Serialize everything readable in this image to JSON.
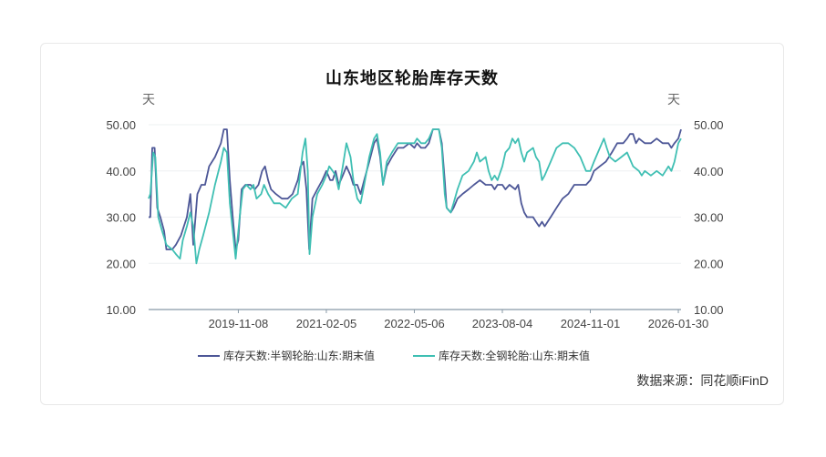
{
  "title": "山东地区轮胎库存天数",
  "source": "数据来源：同花顺iFinD",
  "colors": {
    "series1": "#4d5797",
    "series2": "#3fbfb3",
    "axis": "#8899a6",
    "grid": "#eef0f2"
  },
  "chart_data": {
    "type": "line",
    "title": "山东地区轮胎库存天数",
    "y_unit_left": "天",
    "y_unit_right": "天",
    "ylim": [
      10,
      50
    ],
    "y_ticks": [
      "50.00",
      "40.00",
      "30.00",
      "20.00",
      "10.00"
    ],
    "x_ticks": [
      "2019-11-08",
      "2021-02-05",
      "2022-05-06",
      "2023-08-04",
      "2024-11-01",
      "2026-01-30"
    ],
    "x_range": [
      "2018-08-01",
      "2026-02-13"
    ],
    "grid": true,
    "legend": "bottom",
    "series": [
      {
        "name": "库存天数:半钢轮胎:山东:期末值",
        "points": [
          [
            "2018-08-01",
            30
          ],
          [
            "2018-08-10",
            30
          ],
          [
            "2018-08-20",
            45
          ],
          [
            "2018-09-01",
            45
          ],
          [
            "2018-09-15",
            32
          ],
          [
            "2018-10-01",
            30
          ],
          [
            "2018-10-20",
            27
          ],
          [
            "2018-11-01",
            23
          ],
          [
            "2018-12-01",
            23
          ],
          [
            "2018-12-20",
            24
          ],
          [
            "2019-01-15",
            26
          ],
          [
            "2019-02-15",
            30
          ],
          [
            "2019-03-05",
            35
          ],
          [
            "2019-03-20",
            24
          ],
          [
            "2019-04-10",
            35
          ],
          [
            "2019-05-01",
            37
          ],
          [
            "2019-05-20",
            37
          ],
          [
            "2019-06-10",
            41
          ],
          [
            "2019-07-10",
            43
          ],
          [
            "2019-08-10",
            46
          ],
          [
            "2019-08-25",
            49
          ],
          [
            "2019-09-10",
            49
          ],
          [
            "2019-09-25",
            38
          ],
          [
            "2019-10-10",
            30
          ],
          [
            "2019-10-25",
            23
          ],
          [
            "2019-11-08",
            25
          ],
          [
            "2019-11-25",
            36
          ],
          [
            "2019-12-15",
            37
          ],
          [
            "2020-01-10",
            37
          ],
          [
            "2020-02-01",
            36
          ],
          [
            "2020-02-20",
            37
          ],
          [
            "2020-03-10",
            40
          ],
          [
            "2020-03-25",
            41
          ],
          [
            "2020-04-10",
            38
          ],
          [
            "2020-04-25",
            36
          ],
          [
            "2020-05-20",
            35
          ],
          [
            "2020-06-20",
            34
          ],
          [
            "2020-07-20",
            34
          ],
          [
            "2020-08-15",
            35
          ],
          [
            "2020-09-10",
            38
          ],
          [
            "2020-09-25",
            41
          ],
          [
            "2020-10-10",
            42
          ],
          [
            "2020-10-25",
            36
          ],
          [
            "2020-11-08",
            23
          ],
          [
            "2020-11-25",
            34
          ],
          [
            "2020-12-20",
            36
          ],
          [
            "2021-01-15",
            38
          ],
          [
            "2021-02-05",
            40
          ],
          [
            "2021-02-25",
            38
          ],
          [
            "2021-03-10",
            38
          ],
          [
            "2021-03-25",
            40
          ],
          [
            "2021-04-10",
            37
          ],
          [
            "2021-05-01",
            39
          ],
          [
            "2021-05-20",
            41
          ],
          [
            "2021-06-10",
            39
          ],
          [
            "2021-06-25",
            37
          ],
          [
            "2021-07-15",
            37
          ],
          [
            "2021-08-01",
            35
          ],
          [
            "2021-08-20",
            38
          ],
          [
            "2021-09-15",
            42
          ],
          [
            "2021-10-10",
            46
          ],
          [
            "2021-10-25",
            47
          ],
          [
            "2021-11-10",
            43
          ],
          [
            "2021-11-25",
            37
          ],
          [
            "2021-12-15",
            41
          ],
          [
            "2022-01-10",
            43
          ],
          [
            "2022-02-10",
            45
          ],
          [
            "2022-03-10",
            45
          ],
          [
            "2022-04-10",
            46
          ],
          [
            "2022-05-06",
            45
          ],
          [
            "2022-05-20",
            46
          ],
          [
            "2022-06-10",
            45
          ],
          [
            "2022-07-01",
            45
          ],
          [
            "2022-07-20",
            46
          ],
          [
            "2022-08-10",
            49
          ],
          [
            "2022-09-10",
            49
          ],
          [
            "2022-09-25",
            46
          ],
          [
            "2022-10-10",
            38
          ],
          [
            "2022-10-20",
            32
          ],
          [
            "2022-11-10",
            31
          ],
          [
            "2022-11-25",
            32
          ],
          [
            "2022-12-15",
            34
          ],
          [
            "2023-01-10",
            35
          ],
          [
            "2023-02-10",
            36
          ],
          [
            "2023-03-10",
            37
          ],
          [
            "2023-04-10",
            38
          ],
          [
            "2023-05-10",
            37
          ],
          [
            "2023-06-10",
            37
          ],
          [
            "2023-06-25",
            36
          ],
          [
            "2023-07-10",
            37
          ],
          [
            "2023-08-04",
            37
          ],
          [
            "2023-08-20",
            36
          ],
          [
            "2023-09-10",
            37
          ],
          [
            "2023-10-10",
            36
          ],
          [
            "2023-10-25",
            37
          ],
          [
            "2023-11-10",
            33
          ],
          [
            "2023-11-25",
            31
          ],
          [
            "2023-12-10",
            30
          ],
          [
            "2024-01-10",
            30
          ],
          [
            "2024-01-25",
            29
          ],
          [
            "2024-02-10",
            28
          ],
          [
            "2024-02-25",
            29
          ],
          [
            "2024-03-10",
            28
          ],
          [
            "2024-04-10",
            30
          ],
          [
            "2024-05-10",
            32
          ],
          [
            "2024-06-10",
            34
          ],
          [
            "2024-07-10",
            35
          ],
          [
            "2024-08-10",
            37
          ],
          [
            "2024-09-10",
            37
          ],
          [
            "2024-10-10",
            37
          ],
          [
            "2024-11-01",
            38
          ],
          [
            "2024-11-20",
            40
          ],
          [
            "2024-12-20",
            41
          ],
          [
            "2025-01-20",
            42
          ],
          [
            "2025-02-20",
            44
          ],
          [
            "2025-03-20",
            46
          ],
          [
            "2025-04-20",
            46
          ],
          [
            "2025-05-10",
            47
          ],
          [
            "2025-05-25",
            48
          ],
          [
            "2025-06-10",
            48
          ],
          [
            "2025-06-25",
            46
          ],
          [
            "2025-07-10",
            47
          ],
          [
            "2025-08-10",
            46
          ],
          [
            "2025-09-10",
            46
          ],
          [
            "2025-10-10",
            47
          ],
          [
            "2025-11-10",
            46
          ],
          [
            "2025-12-10",
            46
          ],
          [
            "2025-12-25",
            45
          ],
          [
            "2026-01-10",
            46
          ],
          [
            "2026-01-30",
            47
          ],
          [
            "2026-02-13",
            49
          ]
        ]
      },
      {
        "name": "库存天数:全钢轮胎:山东:期末值",
        "points": [
          [
            "2018-08-01",
            34
          ],
          [
            "2018-08-10",
            35
          ],
          [
            "2018-08-25",
            44
          ],
          [
            "2018-09-05",
            43
          ],
          [
            "2018-09-20",
            30
          ],
          [
            "2018-10-10",
            27
          ],
          [
            "2018-11-01",
            24
          ],
          [
            "2018-12-01",
            23
          ],
          [
            "2018-12-20",
            22
          ],
          [
            "2019-01-10",
            21
          ],
          [
            "2019-01-25",
            25
          ],
          [
            "2019-02-15",
            28
          ],
          [
            "2019-03-05",
            31
          ],
          [
            "2019-03-20",
            28
          ],
          [
            "2019-04-05",
            20
          ],
          [
            "2019-04-20",
            23
          ],
          [
            "2019-05-10",
            26
          ],
          [
            "2019-06-10",
            31
          ],
          [
            "2019-07-10",
            37
          ],
          [
            "2019-08-10",
            42
          ],
          [
            "2019-08-25",
            45
          ],
          [
            "2019-09-10",
            44
          ],
          [
            "2019-09-25",
            33
          ],
          [
            "2019-10-10",
            27
          ],
          [
            "2019-10-25",
            21
          ],
          [
            "2019-11-15",
            30
          ],
          [
            "2019-12-01",
            36
          ],
          [
            "2019-12-20",
            37
          ],
          [
            "2020-01-10",
            36
          ],
          [
            "2020-01-25",
            37
          ],
          [
            "2020-02-10",
            34
          ],
          [
            "2020-03-05",
            35
          ],
          [
            "2020-03-20",
            37
          ],
          [
            "2020-04-10",
            35
          ],
          [
            "2020-05-10",
            33
          ],
          [
            "2020-06-10",
            33
          ],
          [
            "2020-07-10",
            32
          ],
          [
            "2020-08-10",
            34
          ],
          [
            "2020-09-10",
            35
          ],
          [
            "2020-10-05",
            44
          ],
          [
            "2020-10-20",
            47
          ],
          [
            "2020-11-01",
            40
          ],
          [
            "2020-11-10",
            22
          ],
          [
            "2020-11-25",
            30
          ],
          [
            "2020-12-20",
            35
          ],
          [
            "2021-01-15",
            37
          ],
          [
            "2021-02-05",
            39
          ],
          [
            "2021-02-20",
            41
          ],
          [
            "2021-03-10",
            40
          ],
          [
            "2021-03-25",
            39
          ],
          [
            "2021-04-10",
            36
          ],
          [
            "2021-05-01",
            41
          ],
          [
            "2021-05-20",
            46
          ],
          [
            "2021-06-10",
            43
          ],
          [
            "2021-06-25",
            38
          ],
          [
            "2021-07-15",
            34
          ],
          [
            "2021-08-01",
            33
          ],
          [
            "2021-08-20",
            37
          ],
          [
            "2021-09-15",
            43
          ],
          [
            "2021-10-10",
            47
          ],
          [
            "2021-10-25",
            48
          ],
          [
            "2021-11-10",
            44
          ],
          [
            "2021-11-25",
            37
          ],
          [
            "2021-12-15",
            42
          ],
          [
            "2022-01-10",
            44
          ],
          [
            "2022-02-10",
            46
          ],
          [
            "2022-03-10",
            46
          ],
          [
            "2022-04-10",
            46
          ],
          [
            "2022-05-06",
            46
          ],
          [
            "2022-05-20",
            47
          ],
          [
            "2022-06-10",
            46
          ],
          [
            "2022-07-01",
            46
          ],
          [
            "2022-07-20",
            47
          ],
          [
            "2022-08-10",
            49
          ],
          [
            "2022-09-10",
            49
          ],
          [
            "2022-09-25",
            45
          ],
          [
            "2022-10-10",
            35
          ],
          [
            "2022-10-20",
            32
          ],
          [
            "2022-11-10",
            31
          ],
          [
            "2022-11-25",
            33
          ],
          [
            "2022-12-15",
            36
          ],
          [
            "2023-01-10",
            39
          ],
          [
            "2023-02-10",
            40
          ],
          [
            "2023-03-10",
            42
          ],
          [
            "2023-03-25",
            44
          ],
          [
            "2023-04-10",
            42
          ],
          [
            "2023-05-10",
            43
          ],
          [
            "2023-05-25",
            40
          ],
          [
            "2023-06-10",
            38
          ],
          [
            "2023-06-25",
            39
          ],
          [
            "2023-07-10",
            38
          ],
          [
            "2023-08-04",
            41
          ],
          [
            "2023-08-20",
            44
          ],
          [
            "2023-09-10",
            45
          ],
          [
            "2023-09-25",
            47
          ],
          [
            "2023-10-10",
            46
          ],
          [
            "2023-10-25",
            47
          ],
          [
            "2023-11-10",
            44
          ],
          [
            "2023-11-25",
            42
          ],
          [
            "2023-12-10",
            44
          ],
          [
            "2024-01-10",
            45
          ],
          [
            "2024-01-25",
            43
          ],
          [
            "2024-02-10",
            42
          ],
          [
            "2024-02-25",
            38
          ],
          [
            "2024-03-10",
            39
          ],
          [
            "2024-04-10",
            42
          ],
          [
            "2024-05-10",
            45
          ],
          [
            "2024-06-10",
            46
          ],
          [
            "2024-07-10",
            46
          ],
          [
            "2024-08-10",
            45
          ],
          [
            "2024-09-10",
            43
          ],
          [
            "2024-10-10",
            40
          ],
          [
            "2024-11-01",
            40
          ],
          [
            "2024-11-20",
            42
          ],
          [
            "2024-12-10",
            44
          ],
          [
            "2025-01-10",
            47
          ],
          [
            "2025-01-25",
            45
          ],
          [
            "2025-02-10",
            43
          ],
          [
            "2025-03-10",
            42
          ],
          [
            "2025-04-10",
            43
          ],
          [
            "2025-05-10",
            44
          ],
          [
            "2025-06-10",
            41
          ],
          [
            "2025-07-10",
            40
          ],
          [
            "2025-07-25",
            39
          ],
          [
            "2025-08-10",
            40
          ],
          [
            "2025-09-10",
            39
          ],
          [
            "2025-10-10",
            40
          ],
          [
            "2025-11-10",
            39
          ],
          [
            "2025-11-25",
            40
          ],
          [
            "2025-12-10",
            41
          ],
          [
            "2025-12-25",
            40
          ],
          [
            "2026-01-10",
            42
          ],
          [
            "2026-01-20",
            44
          ],
          [
            "2026-01-30",
            46
          ],
          [
            "2026-02-13",
            47
          ]
        ]
      }
    ]
  }
}
